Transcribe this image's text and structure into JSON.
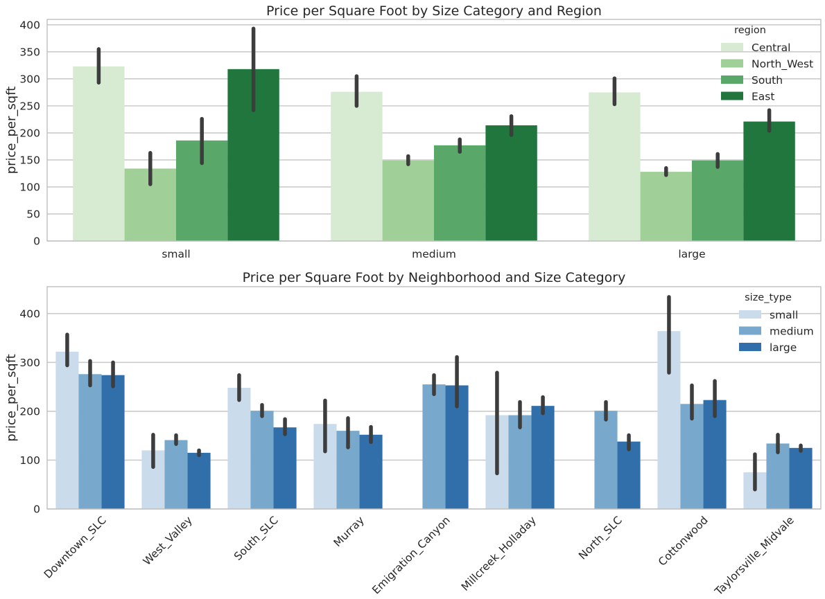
{
  "chart_data": [
    {
      "type": "bar",
      "title": "Price per Square Foot by Size Category and Region",
      "xlabel": "",
      "ylabel": "price_per_sqft",
      "ylim": [
        0,
        410
      ],
      "yticks": [
        0,
        50,
        100,
        150,
        200,
        250,
        300,
        350,
        400
      ],
      "grid": true,
      "legend": {
        "title": "region",
        "placement": "top-right"
      },
      "categories": [
        "small",
        "medium",
        "large"
      ],
      "series": [
        {
          "name": "Central",
          "color": "#d6ebd1",
          "values": [
            323,
            276,
            275
          ],
          "err_low": [
            293,
            250,
            253
          ],
          "err_high": [
            355,
            305,
            301
          ]
        },
        {
          "name": "North_West",
          "color": "#a0cf97",
          "values": [
            134,
            149,
            128
          ],
          "err_low": [
            105,
            142,
            122
          ],
          "err_high": [
            163,
            157,
            135
          ]
        },
        {
          "name": "South",
          "color": "#5aa76a",
          "values": [
            186,
            177,
            149
          ],
          "err_low": [
            144,
            165,
            137
          ],
          "err_high": [
            226,
            188,
            161
          ]
        },
        {
          "name": "East",
          "color": "#21763d",
          "values": [
            318,
            214,
            221
          ],
          "err_low": [
            242,
            196,
            204
          ],
          "err_high": [
            393,
            231,
            242
          ]
        }
      ]
    },
    {
      "type": "bar",
      "title": "Price per Square Foot by Neighborhood and Size Category",
      "xlabel": "",
      "ylabel": "price_per_sqft",
      "ylim": [
        0,
        455
      ],
      "yticks": [
        0,
        100,
        200,
        300,
        400
      ],
      "grid": true,
      "legend": {
        "title": "size_type",
        "placement": "top-right"
      },
      "categories": [
        "Downtown_SLC",
        "West_Valley",
        "South_SLC",
        "Murray",
        "Emigration_Canyon",
        "Millcreek_Holladay",
        "North_SLC",
        "Cottonwood",
        "Taylorsville_Midvale"
      ],
      "series": [
        {
          "name": "small",
          "color": "#cadbec",
          "values": [
            322,
            120,
            248,
            174,
            null,
            192,
            null,
            364,
            75
          ],
          "err_low": [
            294,
            86,
            223,
            118,
            null,
            73,
            null,
            279,
            40
          ],
          "err_high": [
            357,
            152,
            274,
            222,
            null,
            279,
            null,
            434,
            112
          ]
        },
        {
          "name": "medium",
          "color": "#78a9cd",
          "values": [
            276,
            141,
            201,
            160,
            255,
            192,
            201,
            215,
            134
          ],
          "err_low": [
            253,
            133,
            190,
            126,
            235,
            167,
            183,
            185,
            116
          ],
          "err_high": [
            303,
            151,
            213,
            186,
            274,
            219,
            219,
            253,
            152
          ]
        },
        {
          "name": "large",
          "color": "#306faa",
          "values": [
            274,
            115,
            167,
            152,
            253,
            211,
            138,
            223,
            125
          ],
          "err_low": [
            251,
            110,
            153,
            137,
            210,
            196,
            122,
            190,
            119
          ],
          "err_high": [
            300,
            120,
            184,
            168,
            311,
            229,
            151,
            262,
            130
          ]
        }
      ]
    }
  ]
}
